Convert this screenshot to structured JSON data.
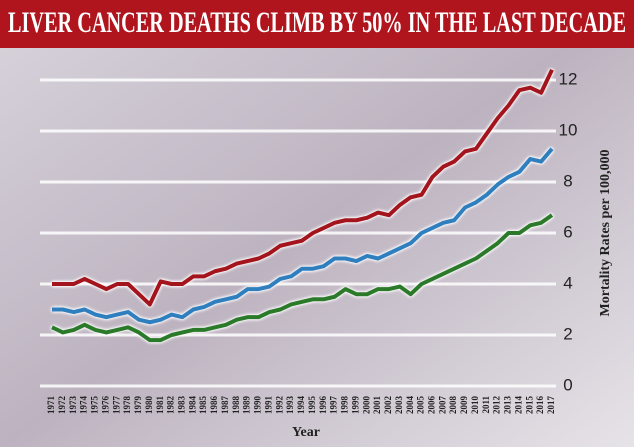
{
  "chart_data": {
    "type": "line",
    "title": "LIVER CANCER DEATHS CLIMB BY 50% IN THE LAST DECADE",
    "x_label": "Year",
    "y_label": "Mortality Rates per 100,000",
    "x": [
      1971,
      1972,
      1973,
      1974,
      1975,
      1976,
      1977,
      1978,
      1979,
      1980,
      1981,
      1982,
      1983,
      1984,
      1985,
      1986,
      1987,
      1988,
      1989,
      1990,
      1991,
      1992,
      1993,
      1994,
      1995,
      1996,
      1997,
      1998,
      1999,
      2000,
      2001,
      2002,
      2003,
      2004,
      2005,
      2006,
      2007,
      2008,
      2009,
      2010,
      2011,
      2012,
      2013,
      2014,
      2015,
      2016,
      2017
    ],
    "xlim": [
      1971,
      2017
    ],
    "series": [
      {
        "color": "#a3141c",
        "values": [
          4.0,
          4.0,
          4.0,
          4.2,
          4.0,
          3.8,
          4.0,
          4.0,
          3.6,
          3.2,
          4.1,
          4.0,
          4.0,
          4.3,
          4.3,
          4.5,
          4.6,
          4.8,
          4.9,
          5.0,
          5.2,
          5.5,
          5.6,
          5.7,
          6.0,
          6.2,
          6.4,
          6.5,
          6.5,
          6.6,
          6.8,
          6.7,
          7.1,
          7.4,
          7.5,
          8.2,
          8.6,
          8.8,
          9.2,
          9.3,
          9.9,
          10.5,
          11.0,
          11.6,
          11.7,
          11.5,
          12.4
        ]
      },
      {
        "color": "#2f7fbf",
        "values": [
          3.0,
          3.0,
          2.9,
          3.0,
          2.8,
          2.7,
          2.8,
          2.9,
          2.6,
          2.5,
          2.6,
          2.8,
          2.7,
          3.0,
          3.1,
          3.3,
          3.4,
          3.5,
          3.8,
          3.8,
          3.9,
          4.2,
          4.3,
          4.6,
          4.6,
          4.7,
          5.0,
          5.0,
          4.9,
          5.1,
          5.0,
          5.2,
          5.4,
          5.6,
          6.0,
          6.2,
          6.4,
          6.5,
          7.0,
          7.2,
          7.5,
          7.9,
          8.2,
          8.4,
          8.9,
          8.8,
          9.3
        ]
      },
      {
        "color": "#2a7a2a",
        "values": [
          2.3,
          2.1,
          2.2,
          2.4,
          2.2,
          2.1,
          2.2,
          2.3,
          2.1,
          1.8,
          1.8,
          2.0,
          2.1,
          2.2,
          2.2,
          2.3,
          2.4,
          2.6,
          2.7,
          2.7,
          2.9,
          3.0,
          3.2,
          3.3,
          3.4,
          3.4,
          3.5,
          3.8,
          3.6,
          3.6,
          3.8,
          3.8,
          3.9,
          3.6,
          4.0,
          4.2,
          4.4,
          4.6,
          4.8,
          5.0,
          5.3,
          5.6,
          6.0,
          6.0,
          6.3,
          6.4,
          6.7
        ]
      }
    ],
    "ylim": [
      0,
      12
    ],
    "yticks": [
      0,
      2,
      4,
      6,
      8,
      10,
      12
    ],
    "grid": true
  }
}
